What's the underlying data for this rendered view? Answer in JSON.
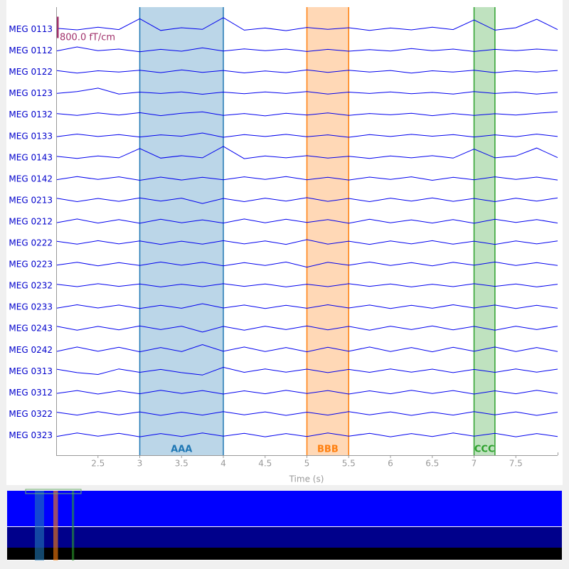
{
  "chart_data": {
    "type": "line",
    "xlabel": "Time (s)",
    "xlim": [
      2,
      8
    ],
    "xticks": [
      2.5,
      3,
      3.5,
      4,
      4.5,
      5,
      5.5,
      6,
      6.5,
      7,
      7.5
    ],
    "overview_xlim": [
      0,
      60
    ],
    "trace_color": "#0000ee",
    "label_color": "#0000cc",
    "scale_bar": {
      "value": 800,
      "label": "800.0 fT/cm"
    },
    "annotations": [
      {
        "label": "AAA",
        "start": 3,
        "end": 4,
        "color": "#1f77b4"
      },
      {
        "label": "BBB",
        "start": 5,
        "end": 5.5,
        "color": "#ff7f0e"
      },
      {
        "label": "CCC",
        "start": 7,
        "end": 7.25,
        "color": "#2ca02c"
      }
    ],
    "x": [
      2,
      2.25,
      2.5,
      2.75,
      3,
      3.25,
      3.5,
      3.75,
      4,
      4.25,
      4.5,
      4.75,
      5,
      5.25,
      5.5,
      5.75,
      6,
      6.25,
      6.5,
      6.75,
      7,
      7.25,
      7.5,
      7.75,
      8
    ],
    "series": [
      {
        "name": "MEG 0113",
        "values": [
          20,
          -40,
          60,
          -30,
          380,
          -60,
          40,
          -20,
          420,
          -50,
          30,
          -70,
          50,
          -20,
          40,
          -60,
          30,
          -40,
          60,
          -30,
          330,
          -50,
          40,
          360,
          -30
        ]
      },
      {
        "name": "MEG 0112",
        "values": [
          -30,
          120,
          -20,
          40,
          -60,
          30,
          -40,
          90,
          -30,
          50,
          -20,
          40,
          -50,
          30,
          -40,
          20,
          -30,
          60,
          -20,
          40,
          -50,
          30,
          -20,
          40,
          -10
        ]
      },
      {
        "name": "MEG 0122",
        "values": [
          40,
          -60,
          30,
          -20,
          50,
          -40,
          60,
          -30,
          40,
          -50,
          20,
          -40,
          60,
          -30,
          50,
          -20,
          40,
          -60,
          30,
          -20,
          50,
          -40,
          30,
          -20,
          40
        ]
      },
      {
        "name": "MEG 0123",
        "values": [
          -20,
          50,
          180,
          -40,
          30,
          -20,
          40,
          -50,
          30,
          -30,
          40,
          -20,
          50,
          -40,
          30,
          -20,
          40,
          -30,
          20,
          -40,
          50,
          -20,
          30,
          -40,
          20
        ]
      },
      {
        "name": "MEG 0132",
        "values": [
          30,
          -40,
          50,
          -30,
          60,
          -50,
          40,
          90,
          -40,
          30,
          -60,
          40,
          -30,
          50,
          -40,
          30,
          -20,
          40,
          -50,
          30,
          -40,
          20,
          -30,
          40,
          90
        ]
      },
      {
        "name": "MEG 0133",
        "values": [
          -40,
          60,
          -30,
          40,
          -50,
          30,
          -20,
          100,
          -60,
          40,
          -30,
          50,
          -40,
          30,
          -60,
          40,
          -30,
          50,
          -20,
          40,
          -50,
          30,
          -40,
          60,
          -30
        ]
      },
      {
        "name": "MEG 0143",
        "values": [
          30,
          -50,
          40,
          -30,
          320,
          -40,
          50,
          -30,
          400,
          -60,
          40,
          -30,
          50,
          -40,
          30,
          -50,
          40,
          -30,
          50,
          -40,
          300,
          -30,
          40,
          340,
          -20
        ]
      },
      {
        "name": "MEG 0142",
        "values": [
          -50,
          70,
          -40,
          60,
          -70,
          50,
          -60,
          40,
          -50,
          60,
          -40,
          70,
          -50,
          40,
          -60,
          50,
          -40,
          60,
          -70,
          40,
          -50,
          60,
          -40,
          50,
          -60
        ]
      },
      {
        "name": "MEG 0213",
        "values": [
          60,
          -70,
          50,
          -60,
          70,
          -50,
          60,
          -140,
          50,
          -70,
          60,
          -50,
          80,
          -60,
          50,
          -70,
          60,
          -50,
          70,
          -60,
          50,
          -70,
          60,
          -50,
          70
        ]
      },
      {
        "name": "MEG 0212",
        "values": [
          -60,
          80,
          -70,
          60,
          -80,
          70,
          -60,
          50,
          -70,
          80,
          -60,
          70,
          -50,
          60,
          -80,
          70,
          -60,
          50,
          -70,
          60,
          -80,
          70,
          -50,
          60,
          -70
        ]
      },
      {
        "name": "MEG 0222",
        "values": [
          50,
          -60,
          70,
          -50,
          60,
          -70,
          50,
          -60,
          70,
          -50,
          60,
          -70,
          110,
          -60,
          50,
          -70,
          60,
          -50,
          70,
          -60,
          50,
          -70,
          60,
          -50,
          60
        ]
      },
      {
        "name": "MEG 0223",
        "values": [
          -50,
          60,
          -70,
          50,
          -60,
          70,
          -50,
          60,
          -70,
          50,
          -60,
          70,
          -120,
          60,
          -50,
          70,
          -60,
          50,
          -70,
          60,
          -50,
          70,
          -60,
          50,
          -60
        ]
      },
      {
        "name": "MEG 0232",
        "values": [
          40,
          -50,
          60,
          -40,
          50,
          -60,
          40,
          -50,
          60,
          -40,
          50,
          -60,
          40,
          -50,
          60,
          -40,
          50,
          -60,
          40,
          -50,
          60,
          -40,
          50,
          -60,
          40
        ]
      },
      {
        "name": "MEG 0233",
        "values": [
          -60,
          70,
          -50,
          60,
          -70,
          50,
          -60,
          110,
          -50,
          60,
          -70,
          50,
          -60,
          70,
          -50,
          60,
          -70,
          50,
          -60,
          70,
          -50,
          60,
          -70,
          50,
          -60
        ]
      },
      {
        "name": "MEG 0243",
        "values": [
          70,
          -80,
          60,
          -70,
          80,
          -60,
          70,
          -150,
          60,
          -80,
          70,
          -60,
          80,
          -70,
          60,
          -80,
          70,
          -60,
          80,
          -70,
          60,
          -80,
          70,
          -60,
          70
        ]
      },
      {
        "name": "MEG 0242",
        "values": [
          -80,
          90,
          -70,
          80,
          -90,
          70,
          -80,
          180,
          -70,
          90,
          -80,
          70,
          -90,
          80,
          -70,
          90,
          -80,
          70,
          -90,
          80,
          -70,
          90,
          -80,
          70,
          -80
        ]
      },
      {
        "name": "MEG 0313",
        "values": [
          60,
          -70,
          -140,
          70,
          -60,
          50,
          -70,
          -160,
          130,
          -60,
          70,
          -50,
          60,
          -70,
          50,
          -60,
          70,
          -50,
          60,
          -70,
          50,
          -60,
          70,
          -50,
          60
        ]
      },
      {
        "name": "MEG 0312",
        "values": [
          -50,
          60,
          -70,
          50,
          -60,
          70,
          -50,
          60,
          -70,
          50,
          -60,
          70,
          -50,
          60,
          -70,
          50,
          -60,
          70,
          -50,
          60,
          -70,
          50,
          -60,
          70,
          -50
        ]
      },
      {
        "name": "MEG 0322",
        "values": [
          50,
          -60,
          70,
          -50,
          60,
          -70,
          50,
          -60,
          70,
          -50,
          60,
          -70,
          50,
          -60,
          70,
          -50,
          60,
          -70,
          50,
          -60,
          70,
          -50,
          60,
          -70,
          50
        ]
      },
      {
        "name": "MEG 0323",
        "values": [
          -60,
          70,
          -50,
          60,
          -70,
          50,
          -60,
          70,
          -50,
          60,
          -70,
          50,
          -60,
          70,
          -50,
          60,
          -70,
          50,
          -60,
          70,
          -50,
          60,
          -70,
          50,
          -60
        ]
      }
    ]
  }
}
